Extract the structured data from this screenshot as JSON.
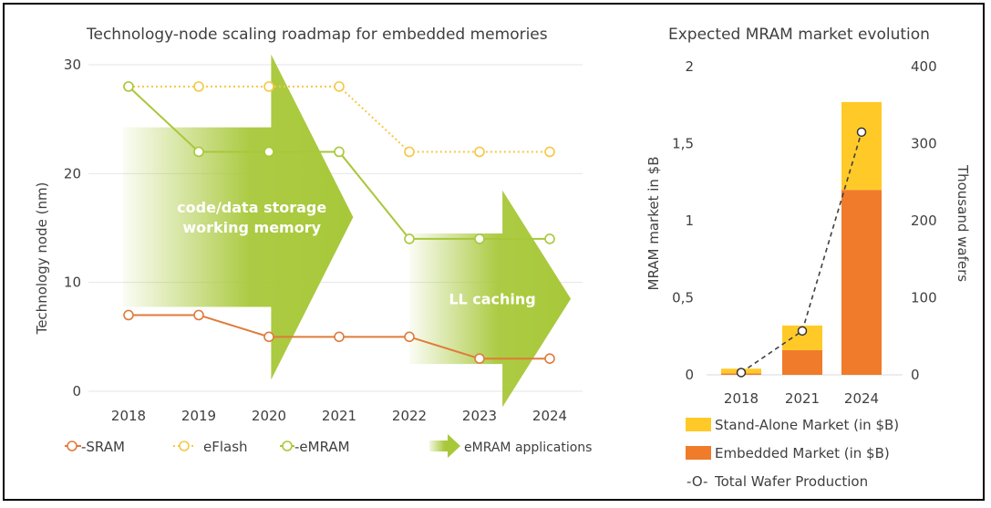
{
  "chart_data": [
    {
      "type": "line",
      "title": "Technology-node scaling roadmap for embedded memories",
      "ylabel": "Technology node (nm)",
      "xlabel": "",
      "ylim": [
        0,
        30
      ],
      "y_ticks": [
        "0",
        "10",
        "20",
        "30"
      ],
      "categories": [
        "2018",
        "2019",
        "2020",
        "2021",
        "2022",
        "2023",
        "2024"
      ],
      "grid": true,
      "legend_placement": "bottom",
      "series": [
        {
          "name": "SRAM",
          "values": [
            7,
            7,
            5,
            5,
            5,
            3,
            3
          ],
          "color": "#E07B3A",
          "style": "solid"
        },
        {
          "name": "eFlash",
          "values": [
            28,
            28,
            28,
            28,
            22,
            22,
            22
          ],
          "color": "#F5C842",
          "style": "dotted"
        },
        {
          "name": "eMRAM",
          "values": [
            28,
            22,
            22,
            22,
            14,
            14,
            14
          ],
          "color": "#A8C83A",
          "style": "solid"
        }
      ],
      "arrows": [
        {
          "label_lines": [
            "code/data storage",
            "working memory"
          ],
          "x_start": 2018,
          "x_end": 2021.2,
          "y_low": 8,
          "y_high": 24.5,
          "tip_y": 16
        },
        {
          "label_lines": [
            "LL caching"
          ],
          "x_start": 2022,
          "x_end": 2024.3,
          "y_low": 2.5,
          "y_high": 14.5,
          "tip_y": 8.5
        }
      ],
      "arrow_legend": "eMRAM applications",
      "arrow_color": "#A8C83A"
    },
    {
      "type": "bar",
      "title": "Expected MRAM market evolution",
      "ylabel": "MRAM market in $B",
      "y2label": "Thousand wafers",
      "ylim": [
        0,
        2
      ],
      "y2lim": [
        0,
        400
      ],
      "y_ticks": [
        "0",
        "0,5",
        "1",
        "1,5",
        "2"
      ],
      "y2_ticks": [
        "0",
        "100",
        "200",
        "300",
        "400"
      ],
      "categories": [
        "2018",
        "2021",
        "2024"
      ],
      "stacked": true,
      "legend_placement": "bottom",
      "series": [
        {
          "name": "Embedded Market (in $B)",
          "values": [
            0.01,
            0.16,
            1.2
          ],
          "color": "#F07B2A"
        },
        {
          "name": "Stand-Alone Market (in $B)",
          "values": [
            0.03,
            0.16,
            0.57
          ],
          "color": "#FFCA28"
        }
      ],
      "line_series": {
        "name": "Total Wafer Production",
        "values": [
          3,
          57,
          315
        ],
        "axis": "y2",
        "color": "#404040",
        "style": "dashed"
      }
    }
  ],
  "legend_marks": {
    "sram": "-SRAM",
    "eflash": "eFlash",
    "emram": "-eMRAM",
    "wafer_prefix": "-O-",
    "wafer": "Total Wafer Production"
  }
}
